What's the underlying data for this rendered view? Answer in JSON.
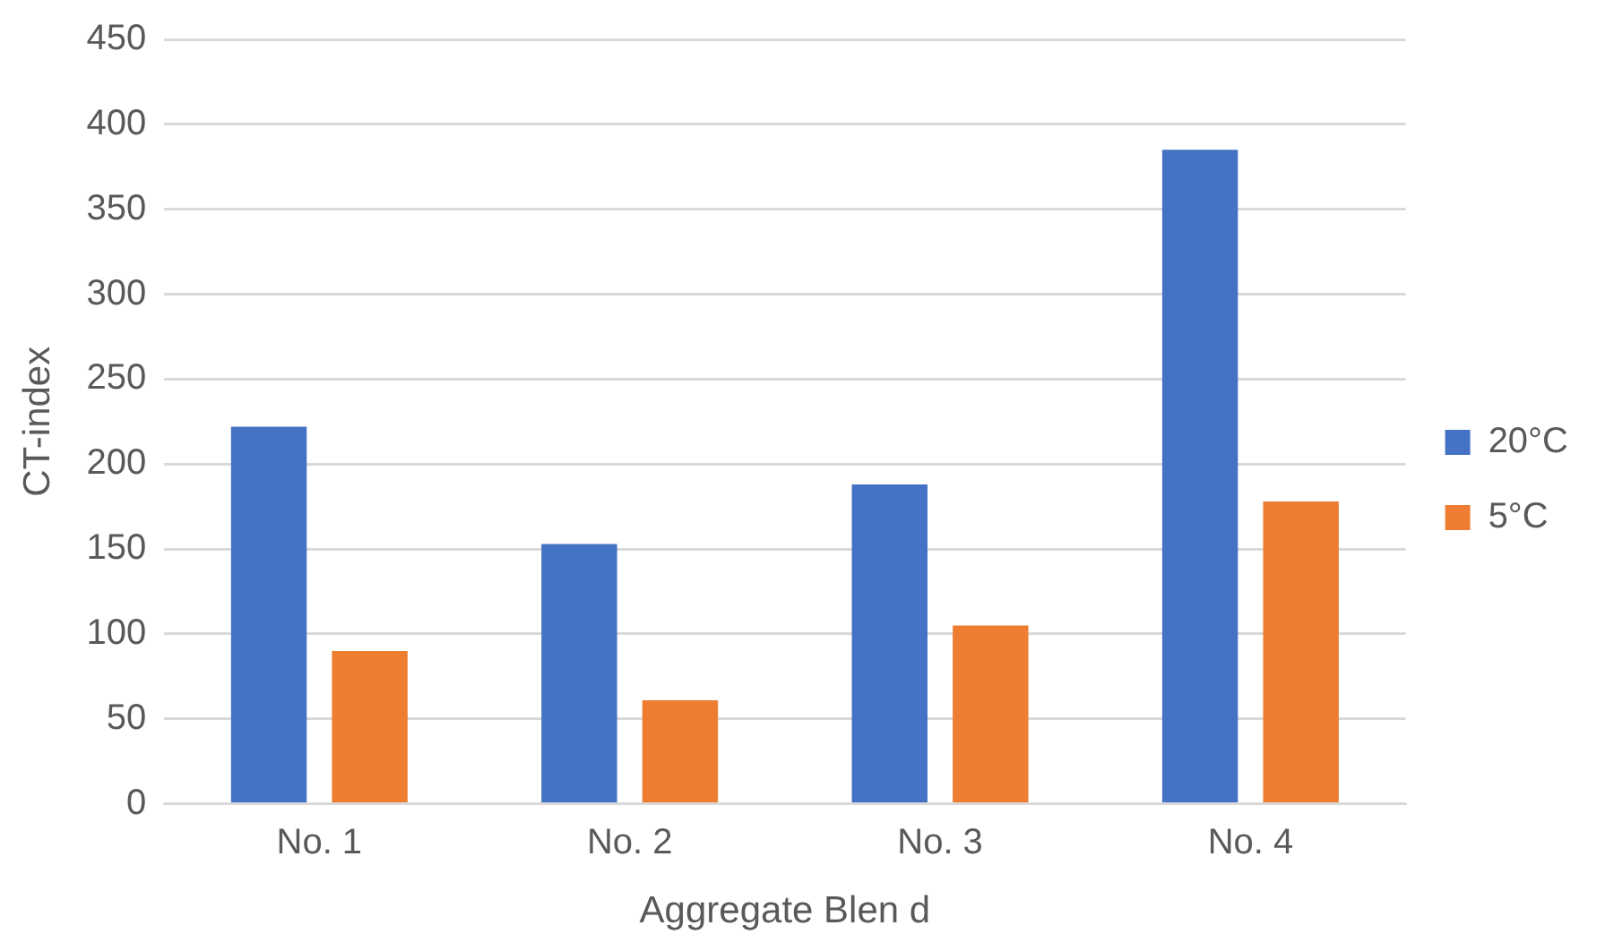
{
  "chart_data": {
    "type": "bar",
    "xlabel": "Aggregate Blen d",
    "ylabel": "CT-index",
    "categories": [
      "No. 1",
      "No. 2",
      "No. 3",
      "No. 4"
    ],
    "series": [
      {
        "name": "20°C",
        "color": "#4472c4",
        "values": [
          222,
          153,
          188,
          385
        ]
      },
      {
        "name": "5°C",
        "color": "#ed7d31",
        "values": [
          90,
          61,
          105,
          178
        ]
      }
    ],
    "ylim": [
      0,
      450
    ],
    "yticks": [
      0,
      50,
      100,
      150,
      200,
      250,
      300,
      350,
      400,
      450
    ],
    "grid": "y",
    "legend": "right"
  }
}
